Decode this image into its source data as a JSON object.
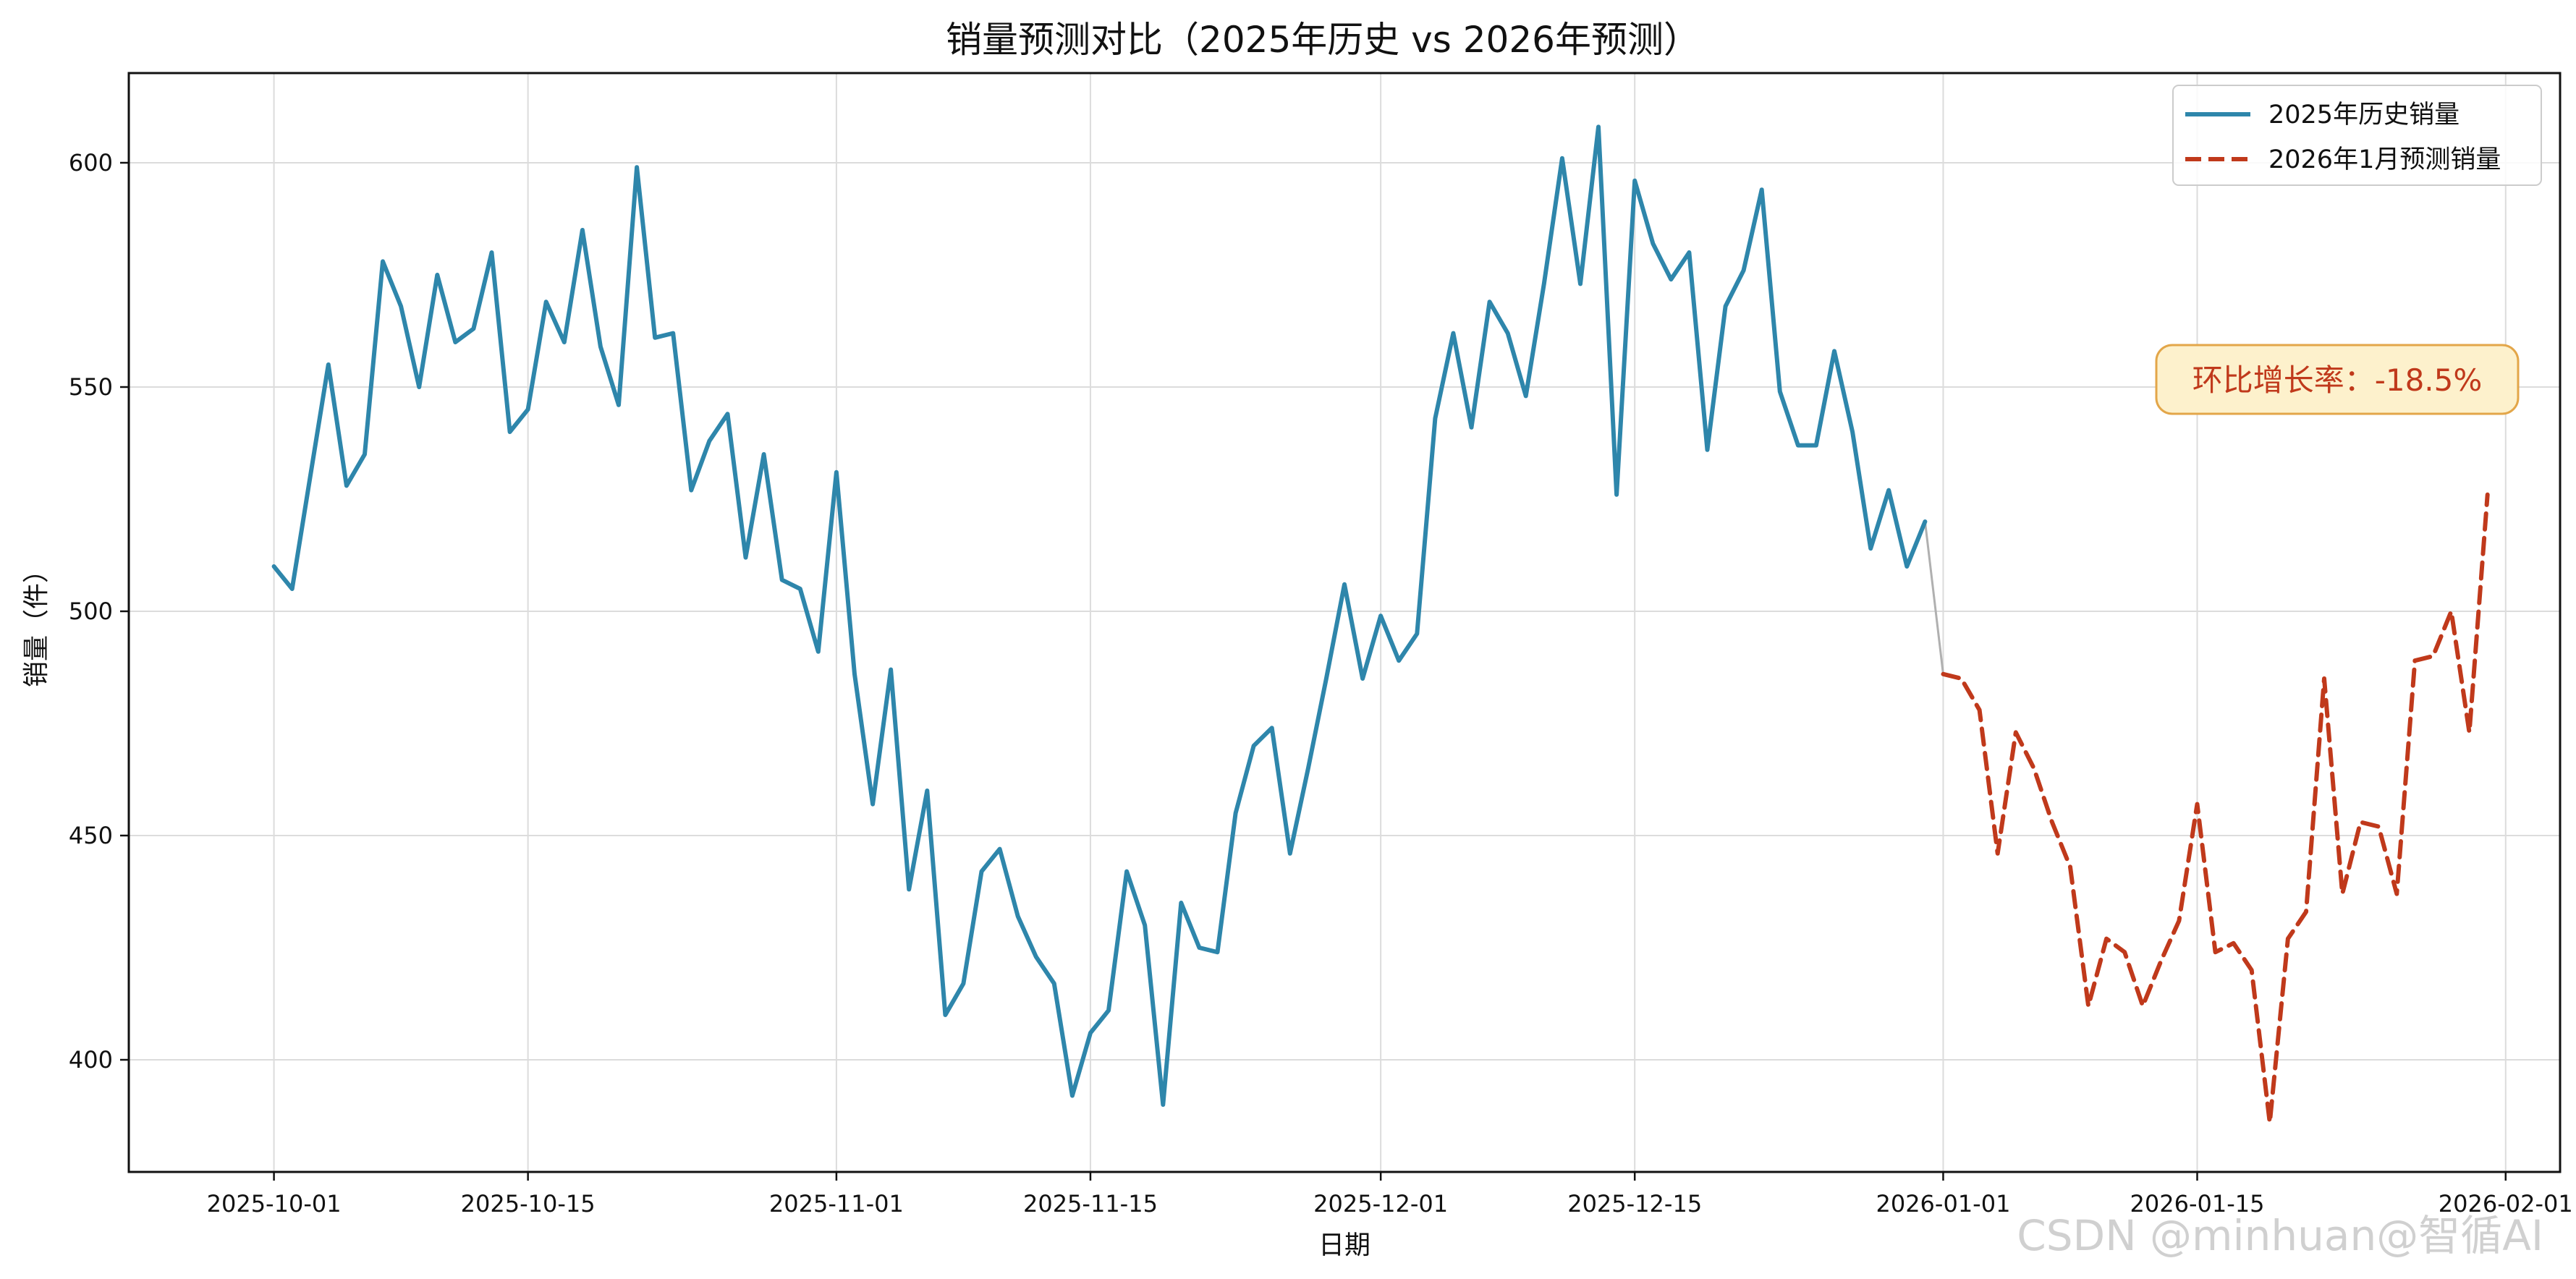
{
  "chart_data": {
    "type": "line",
    "title": "销量预测对比（2025年历史 vs 2026年预测）",
    "xlabel": "日期",
    "ylabel": "销量（件）",
    "x_range": [
      "2025-09-23",
      "2026-02-04"
    ],
    "ylim": [
      375,
      620
    ],
    "grid": true,
    "legend_position": "top-right",
    "x_ticks": [
      "2025-10-01",
      "2025-10-15",
      "2025-11-01",
      "2025-11-15",
      "2025-12-01",
      "2025-12-15",
      "2026-01-01",
      "2026-01-15",
      "2026-02-01"
    ],
    "y_ticks": [
      400,
      450,
      500,
      550,
      600
    ],
    "series": [
      {
        "name": "2025年历史销量",
        "style": "solid",
        "color": "#2e86ab",
        "start_date": "2025-10-01",
        "values": [
          510,
          505,
          530,
          555,
          528,
          535,
          578,
          568,
          550,
          575,
          560,
          563,
          580,
          540,
          545,
          569,
          560,
          585,
          559,
          546,
          599,
          561,
          562,
          527,
          538,
          544,
          512,
          535,
          507,
          505,
          491,
          531,
          486,
          457,
          487,
          438,
          460,
          410,
          417,
          442,
          447,
          432,
          423,
          417,
          392,
          406,
          411,
          442,
          430,
          390,
          435,
          425,
          424,
          455,
          470,
          474,
          446,
          465,
          485,
          506,
          485,
          499,
          489,
          495,
          543,
          562,
          541,
          569,
          562,
          548,
          573,
          601,
          573,
          608,
          526,
          596,
          582,
          574,
          580,
          536,
          568,
          576,
          594,
          549,
          537,
          537,
          558,
          540,
          514,
          527,
          510,
          520
        ]
      },
      {
        "name": "2026年1月预测销量",
        "style": "dashed",
        "color": "#c0391b",
        "start_date": "2026-01-01",
        "values": [
          486,
          485,
          478,
          446,
          473,
          465,
          453,
          443,
          412,
          427,
          424,
          412,
          422,
          431,
          457,
          424,
          426,
          420,
          386,
          427,
          433,
          485,
          437,
          453,
          452,
          437,
          489,
          490,
          500,
          473,
          526
        ]
      }
    ],
    "connector_color": "#b0b0b0",
    "annotation": {
      "text": "环比增长率：-18.5%",
      "text_color": "#c0391b",
      "box_fill": "#fdf1cc",
      "box_edge": "#e3a649"
    },
    "watermark": "CSDN @minhuan@智循AI"
  }
}
